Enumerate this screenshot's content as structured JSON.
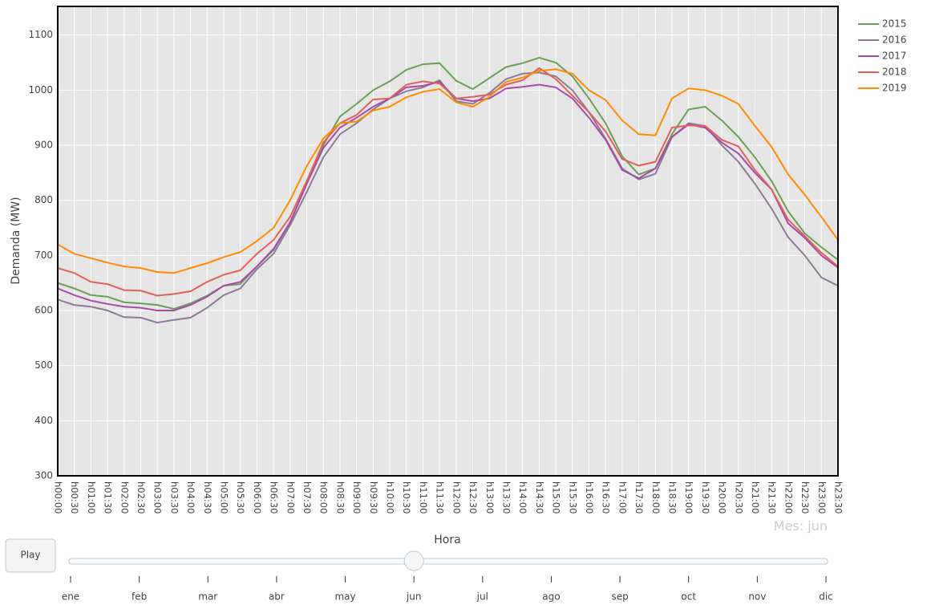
{
  "chart_data": {
    "type": "line",
    "y_label": "Demanda (MW)",
    "x_label": "Hora",
    "categories": [
      "h00:00",
      "h00:30",
      "h01:00",
      "h01:30",
      "h02:00",
      "h02:30",
      "h03:00",
      "h03:30",
      "h04:00",
      "h04:30",
      "h05:00",
      "h05:30",
      "h06:00",
      "h06:30",
      "h07:00",
      "h07:30",
      "h08:00",
      "h08:30",
      "h09:00",
      "h09:30",
      "h10:00",
      "h10:30",
      "h11:00",
      "h11:30",
      "h12:00",
      "h12:30",
      "h13:00",
      "h13:30",
      "h14:00",
      "h14:30",
      "h15:00",
      "h15:30",
      "h16:00",
      "h16:30",
      "h17:00",
      "h17:30",
      "h18:00",
      "h18:30",
      "h19:00",
      "h19:30",
      "h20:00",
      "h20:30",
      "h21:00",
      "h21:30",
      "h22:00",
      "h22:30",
      "h23:00",
      "h23:30"
    ],
    "series": [
      {
        "name": "2015",
        "color": "#6a9f58",
        "values": [
          650,
          640,
          628,
          625,
          615,
          613,
          610,
          603,
          613,
          627,
          645,
          648,
          680,
          710,
          760,
          830,
          900,
          952,
          975,
          1000,
          1016,
          1037,
          1047,
          1049,
          1017,
          1002,
          1022,
          1042,
          1049,
          1059,
          1050,
          1025,
          985,
          940,
          880,
          847,
          858,
          920,
          965,
          970,
          945,
          915,
          878,
          835,
          780,
          740,
          715,
          692
        ]
      },
      {
        "name": "2016",
        "color": "#8c7a96",
        "values": [
          620,
          610,
          607,
          600,
          588,
          587,
          578,
          583,
          587,
          605,
          628,
          640,
          675,
          703,
          755,
          815,
          878,
          920,
          940,
          965,
          985,
          998,
          1005,
          1018,
          980,
          975,
          995,
          1020,
          1030,
          1032,
          1025,
          1000,
          960,
          912,
          858,
          838,
          848,
          915,
          940,
          935,
          900,
          870,
          830,
          785,
          733,
          700,
          660,
          645
        ]
      },
      {
        "name": "2017",
        "color": "#a64ca6",
        "values": [
          640,
          628,
          618,
          612,
          607,
          605,
          600,
          600,
          610,
          625,
          645,
          652,
          680,
          712,
          760,
          830,
          895,
          932,
          950,
          970,
          985,
          1005,
          1008,
          1015,
          985,
          980,
          985,
          1003,
          1006,
          1010,
          1005,
          985,
          950,
          910,
          855,
          840,
          858,
          915,
          938,
          932,
          905,
          885,
          850,
          820,
          758,
          732,
          700,
          678
        ]
      },
      {
        "name": "2018",
        "color": "#e0605a",
        "values": [
          677,
          668,
          652,
          648,
          637,
          636,
          627,
          630,
          635,
          652,
          665,
          673,
          703,
          728,
          770,
          835,
          905,
          940,
          955,
          983,
          985,
          1010,
          1016,
          1012,
          985,
          988,
          992,
          1010,
          1018,
          1040,
          1020,
          990,
          960,
          925,
          875,
          863,
          870,
          932,
          936,
          935,
          910,
          898,
          855,
          820,
          765,
          735,
          705,
          680
        ]
      },
      {
        "name": "2019",
        "color": "#ff8c00",
        "values": [
          720,
          703,
          695,
          687,
          680,
          677,
          670,
          668,
          677,
          686,
          697,
          706,
          726,
          750,
          800,
          862,
          912,
          940,
          943,
          963,
          970,
          987,
          997,
          1002,
          978,
          970,
          988,
          1015,
          1023,
          1035,
          1038,
          1030,
          1000,
          982,
          945,
          920,
          918,
          985,
          1003,
          1000,
          990,
          975,
          935,
          897,
          847,
          810,
          770,
          728
        ]
      }
    ],
    "ylim": [
      300,
      1152
    ],
    "yticks": [
      300,
      400,
      500,
      600,
      700,
      800,
      900,
      1000,
      1100
    ],
    "grid": true,
    "legend": "right",
    "slider": {
      "prefix": "Mes:",
      "button": "Play",
      "active": 5,
      "steps": [
        "ene",
        "feb",
        "mar",
        "abr",
        "may",
        "jun",
        "jul",
        "ago",
        "sep",
        "oct",
        "nov",
        "dic"
      ]
    }
  }
}
